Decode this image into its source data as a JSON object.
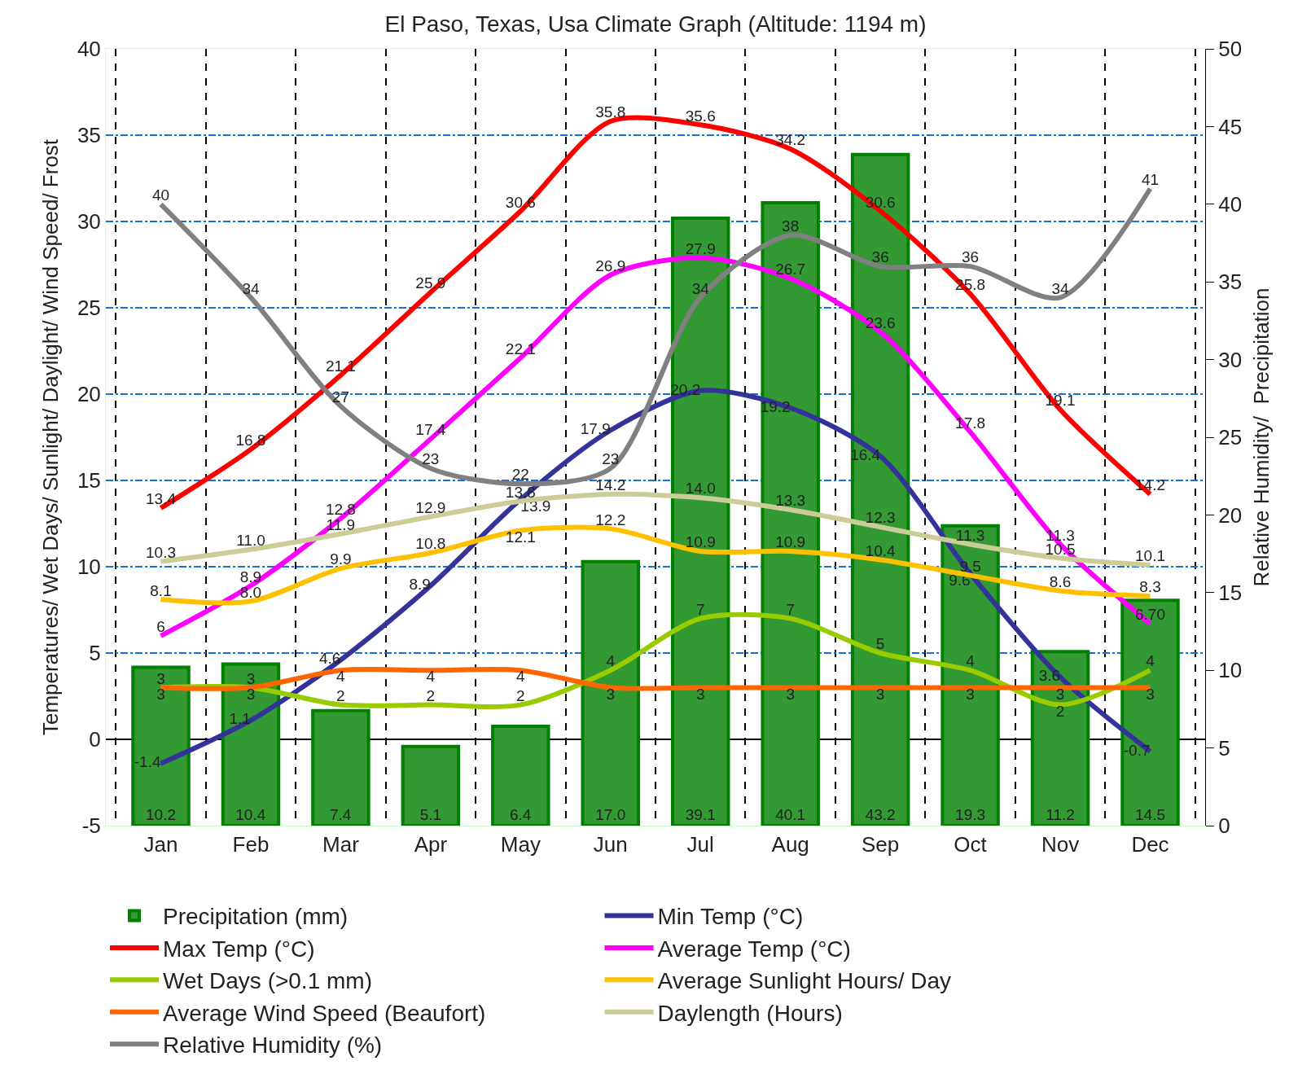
{
  "chart_data": {
    "type": "line",
    "title": "El Paso, Texas, Usa Climate Graph (Altitude: 1194 m)",
    "categories": [
      "Jan",
      "Feb",
      "Mar",
      "Apr",
      "May",
      "Jun",
      "Jul",
      "Aug",
      "Sep",
      "Oct",
      "Nov",
      "Dec"
    ],
    "ylabel": "Temperatures/ Wet Days/ Sunlight/ Daylight/ Wind Speed/ Frost",
    "y2label": "Relative Humidity/  Precipitation",
    "ylim": [
      -5,
      40
    ],
    "yticks": [
      -5,
      0,
      5,
      10,
      15,
      20,
      25,
      30,
      35,
      40
    ],
    "y2lim": [
      0,
      50
    ],
    "y2ticks": [
      0,
      5,
      10,
      15,
      20,
      25,
      30,
      35,
      40,
      45,
      50
    ],
    "grid": true,
    "legend": "bottom",
    "marker": "none",
    "line_style": "solid",
    "series": [
      {
        "name": "Precipitation (mm)",
        "type": "bar",
        "axis": "y2",
        "color": "#339933",
        "values": [
          10.2,
          10.4,
          7.4,
          5.1,
          6.4,
          17.0,
          39.1,
          40.1,
          43.2,
          19.3,
          11.2,
          14.5
        ],
        "value_labels": [
          "10.2",
          "10.4",
          "7.4",
          "5.1",
          "6.4",
          "17.0",
          "39.1",
          "40.1",
          "43.2",
          "19.3",
          "11.2",
          "14.5"
        ]
      },
      {
        "name": "Min Temp (°C)",
        "color": "#333399",
        "values": [
          -1.4,
          1.1,
          4.6,
          8.9,
          13.9,
          17.9,
          20.2,
          19.2,
          16.4,
          9.6,
          3.6,
          -0.7
        ],
        "value_labels": [
          "-1.4",
          "1.1",
          "4.6",
          "8.9",
          "13.9",
          "17.9",
          "20.2",
          "19.2",
          "16.4",
          "9.6",
          "3.6",
          "-0.7"
        ]
      },
      {
        "name": "Max Temp (°C)",
        "color": "#ff0000",
        "values": [
          13.4,
          16.8,
          21.1,
          25.9,
          30.6,
          35.8,
          35.6,
          34.2,
          30.6,
          25.8,
          19.1,
          14.2
        ],
        "value_labels": [
          "13.4",
          "16.8",
          "21.1",
          "25.9",
          "30.6",
          "35.8",
          "35.6",
          "34.2",
          "30.6",
          "25.8",
          "19.1",
          "14.2"
        ]
      },
      {
        "name": "Average Temp (°C)",
        "color": "#ff00ff",
        "values": [
          6,
          8.9,
          12.8,
          17.4,
          22.1,
          26.9,
          27.9,
          26.7,
          23.6,
          17.8,
          11.3,
          6.7
        ],
        "value_labels": [
          "6",
          "8.9",
          "12.8",
          "17.4",
          "22.1",
          "26.9",
          "27.9",
          "26.7",
          "23.6",
          "17.8",
          "11.3",
          "6.70"
        ]
      },
      {
        "name": "Wet Days (>0.1 mm)",
        "color": "#99cc00",
        "values": [
          3,
          3,
          2,
          2,
          2,
          4,
          7,
          7,
          5,
          4,
          2,
          4
        ],
        "value_labels": [
          "3",
          "3",
          "2",
          "2",
          "2",
          "4",
          "7",
          "7",
          "5",
          "4",
          "2",
          "4"
        ]
      },
      {
        "name": "Average Sunlight Hours/ Day",
        "color": "#ffc000",
        "values": [
          8.1,
          8.0,
          9.9,
          10.8,
          12.1,
          12.2,
          10.9,
          10.9,
          10.4,
          9.5,
          8.6,
          8.3
        ],
        "value_labels": [
          "8.1",
          "8.0",
          "9.9",
          "10.8",
          "12.1",
          "12.2",
          "10.9",
          "10.9",
          "10.4",
          "9.5",
          "8.6",
          "8.3"
        ]
      },
      {
        "name": "Average Wind Speed (Beaufort)",
        "color": "#ff6600",
        "values": [
          3,
          3,
          4,
          4,
          4,
          3,
          3,
          3,
          3,
          3,
          3,
          3
        ],
        "value_labels": [
          "3",
          "3",
          "4",
          "4",
          "4",
          "3",
          "3",
          "3",
          "3",
          "3",
          "3",
          "3"
        ]
      },
      {
        "name": "Daylength (Hours)",
        "color": "#cccc99",
        "values": [
          10.3,
          11.0,
          11.9,
          12.9,
          13.8,
          14.2,
          14.0,
          13.3,
          12.3,
          11.3,
          10.5,
          10.1
        ],
        "value_labels": [
          "10.3",
          "11.0",
          "11.9",
          "12.9",
          "13.8",
          "14.2",
          "14.0",
          "13.3",
          "12.3",
          "11.3",
          "10.5",
          "10.1"
        ]
      },
      {
        "name": "Relative Humidity (%)",
        "axis": "y2",
        "color": "#808080",
        "values": [
          40,
          34,
          27,
          23,
          22,
          23,
          34,
          38,
          36,
          36,
          34,
          41
        ],
        "value_labels": [
          "40",
          "34",
          "27",
          "23",
          "22",
          "23",
          "34",
          "38",
          "36",
          "36",
          "34",
          "41"
        ]
      }
    ]
  }
}
